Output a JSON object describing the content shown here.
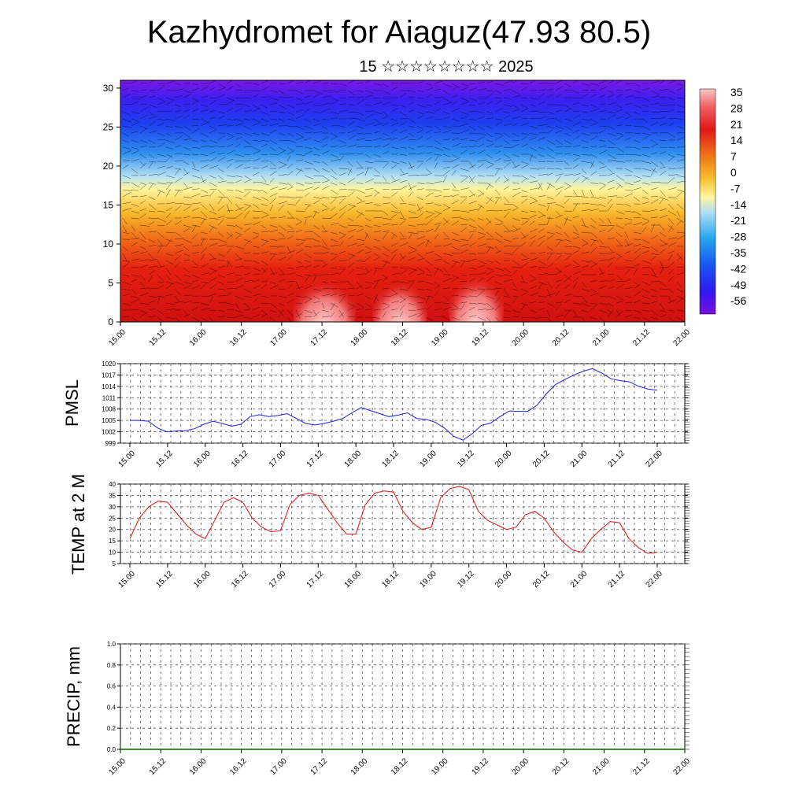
{
  "title": "Kazhydromet for Aiaguz(47.93 80.5)",
  "subtitle": "15 ☆☆☆☆☆☆☆☆ 2025",
  "colors": {
    "pmsl_line": "#1f1fd6",
    "temp_line": "#e01010",
    "precip_line": "#006400"
  },
  "chart_data": [
    {
      "type": "heatmap",
      "name": "cross-section",
      "x_ticks": [
        "15.00",
        "15.12",
        "16.00",
        "16.12",
        "17.00",
        "17.12",
        "18.00",
        "18.12",
        "19.00",
        "19.12",
        "20.00",
        "20.12",
        "21.00",
        "21.12",
        "22.00"
      ],
      "y_ticks": [
        "0",
        "5",
        "10",
        "15",
        "20",
        "25",
        "30"
      ],
      "ylim": [
        0,
        31
      ],
      "colorbar_labels": [
        "35",
        "28",
        "21",
        "14",
        "7",
        "0",
        "-7",
        "-14",
        "-21",
        "-28",
        "-35",
        "-42",
        "-49",
        "-56"
      ],
      "colorbar_range": [
        -60,
        38
      ],
      "colors": [
        "#7a10e0",
        "#3018f0",
        "#1858f0",
        "#28a8f0",
        "#a8ddf5",
        "#fff5a0",
        "#f8c030",
        "#f07818",
        "#e82010",
        "#d81010",
        "#f06060",
        "#f8b0b0"
      ]
    },
    {
      "type": "line",
      "name": "PMSL",
      "ylabel": "PMSL",
      "ylim": [
        999,
        1020
      ],
      "y_ticks": [
        "999",
        "1002",
        "1005",
        "1008",
        "1011",
        "1014",
        "1017",
        "1020"
      ],
      "x_ticks": [
        "15.00",
        "15.12",
        "16.00",
        "16.12",
        "17.00",
        "17.12",
        "18.00",
        "18.12",
        "19.00",
        "19.12",
        "20.00",
        "20.12",
        "21.00",
        "21.12",
        "22.00"
      ],
      "values": [
        1005,
        1005,
        1004.8,
        1003,
        1002,
        1002.2,
        1002.3,
        1002.8,
        1004,
        1004.8,
        1004.2,
        1003.5,
        1004,
        1006,
        1006.5,
        1006,
        1006.3,
        1006.8,
        1005.5,
        1004.2,
        1003.8,
        1004.2,
        1004.8,
        1005.5,
        1007,
        1008.4,
        1007.6,
        1006.8,
        1006,
        1006.4,
        1007,
        1005.5,
        1005.3,
        1004.5,
        1003,
        1000.8,
        999.8,
        1001.5,
        1003.7,
        1004.3,
        1006,
        1007.5,
        1007.4,
        1007.4,
        1009,
        1012,
        1014.5,
        1015.8,
        1017,
        1018,
        1018.7,
        1017.5,
        1016,
        1015.5,
        1015.2,
        1014,
        1013.3,
        1013
      ]
    },
    {
      "type": "line",
      "name": "TEMP at 2 M",
      "ylabel": "TEMP at 2 M",
      "ylim": [
        5,
        40
      ],
      "y_ticks": [
        "5",
        "10",
        "15",
        "20",
        "25",
        "30",
        "35",
        "40"
      ],
      "x_ticks": [
        "15.00",
        "15.12",
        "16.00",
        "16.12",
        "17.00",
        "17.12",
        "18.00",
        "18.12",
        "19.00",
        "19.12",
        "20.00",
        "20.12",
        "21.00",
        "21.12",
        "22.00"
      ],
      "values": [
        16,
        25,
        30,
        32.5,
        32,
        27,
        22,
        18,
        16,
        24,
        32,
        34,
        32,
        25,
        21,
        19,
        19.5,
        31,
        35,
        36,
        35,
        29,
        23,
        18,
        18,
        31,
        36,
        37,
        36.5,
        28,
        23,
        20,
        21,
        34,
        38,
        39,
        37.5,
        28,
        24,
        22,
        20,
        21,
        26.5,
        28,
        25,
        19,
        14.5,
        11,
        10,
        16,
        20,
        23.5,
        23,
        16,
        12,
        9.5,
        10
      ]
    },
    {
      "type": "line",
      "name": "PRECIP",
      "ylabel": "PRECIP, mm",
      "ylim": [
        0,
        1
      ],
      "y_ticks": [
        "0.0",
        "0.2",
        "0.4",
        "0.6",
        "0.8",
        "1.0"
      ],
      "x_ticks": [
        "15.00",
        "15.12",
        "16.00",
        "16.12",
        "17.00",
        "17.12",
        "18.00",
        "18.12",
        "19.00",
        "19.12",
        "20.00",
        "20.12",
        "21.00",
        "21.12",
        "22.00"
      ],
      "values": [
        0,
        0,
        0,
        0,
        0,
        0,
        0,
        0,
        0,
        0,
        0,
        0,
        0,
        0,
        0,
        0,
        0,
        0,
        0,
        0,
        0,
        0,
        0,
        0,
        0,
        0,
        0,
        0,
        0,
        0,
        0,
        0,
        0,
        0,
        0,
        0,
        0,
        0,
        0,
        0,
        0,
        0,
        0,
        0,
        0,
        0,
        0,
        0,
        0,
        0,
        0,
        0,
        0,
        0,
        0,
        0,
        0
      ]
    }
  ]
}
